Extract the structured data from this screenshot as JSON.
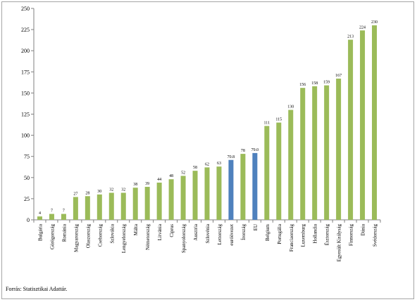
{
  "source_note": "Forrás: Statisztikai Adattár.",
  "chart_data": {
    "type": "bar",
    "categories": [
      "Bulgária",
      "Görögország",
      "Románia",
      "Magyarország",
      "Olaszország",
      "Csehország",
      "Szlovákia",
      "Lengyelország",
      "Málta",
      "Németország",
      "Litvánia",
      "Ciprus",
      "Spanyolország",
      "Ausztria",
      "Szlovénia",
      "Lettország",
      "euróövezet",
      "Írország",
      "EU",
      "Belgium",
      "Portugália",
      "Franciaország",
      "Luxemburg",
      "Hollandia",
      "Észtország",
      "Egyesült Királyság",
      "Finnország",
      "Dánia",
      "Svédország"
    ],
    "values": [
      4,
      7,
      7,
      27,
      28,
      30,
      32,
      32,
      38,
      39,
      44,
      48,
      52,
      58,
      62,
      63,
      70.8,
      78,
      79,
      111,
      115,
      130,
      156,
      158,
      159,
      167,
      213,
      224,
      230
    ],
    "value_labels": [
      "4",
      "7",
      "7",
      "27",
      "28",
      "30",
      "32",
      "32",
      "38",
      "39",
      "44",
      "48",
      "52",
      "58",
      "62",
      "63",
      "70.8",
      "78",
      "79.0",
      "111",
      "115",
      "130",
      "156",
      "158",
      "159",
      "167",
      "213",
      "224",
      "230"
    ],
    "ylim": [
      0,
      250
    ],
    "yticks": [
      0,
      25,
      50,
      75,
      100,
      125,
      150,
      175,
      200,
      225,
      250
    ],
    "grid": false,
    "colors": {
      "default": "#9bbb59",
      "highlight": "#4f81bd",
      "axis": "#808080"
    },
    "highlight_categories": [
      "euróövezet",
      "EU"
    ]
  }
}
